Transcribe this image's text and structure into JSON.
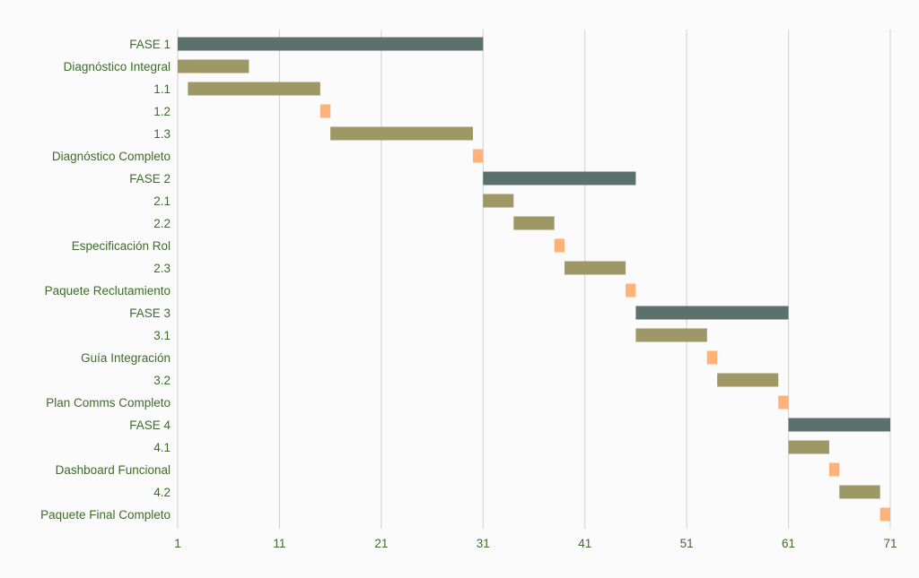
{
  "chart_data": {
    "type": "gantt",
    "title": "",
    "xlabel": "",
    "ylabel": "",
    "xlim": [
      1,
      71
    ],
    "x_ticks": [
      1,
      11,
      21,
      31,
      41,
      51,
      61,
      71
    ],
    "grid": "vertical",
    "legend": "none",
    "colors": {
      "phase": "#5c716b",
      "task": "#9e9766",
      "milestone": "#fdb27a",
      "label": "#3d6b2a"
    },
    "tasks": [
      {
        "label": "FASE 1",
        "start": 1,
        "end": 31,
        "kind": "phase"
      },
      {
        "label": "Diagnóstico Integral",
        "start": 1,
        "end": 8,
        "kind": "task"
      },
      {
        "label": "1.1",
        "start": 2,
        "end": 15,
        "kind": "task"
      },
      {
        "label": "1.2",
        "start": 15,
        "end": 16,
        "kind": "milestone"
      },
      {
        "label": "1.3",
        "start": 16,
        "end": 30,
        "kind": "task"
      },
      {
        "label": "Diagnóstico Completo",
        "start": 30,
        "end": 31,
        "kind": "milestone"
      },
      {
        "label": "FASE 2",
        "start": 31,
        "end": 46,
        "kind": "phase"
      },
      {
        "label": "2.1",
        "start": 31,
        "end": 34,
        "kind": "task"
      },
      {
        "label": "2.2",
        "start": 34,
        "end": 38,
        "kind": "task"
      },
      {
        "label": "Especificación Rol",
        "start": 38,
        "end": 39,
        "kind": "milestone"
      },
      {
        "label": "2.3",
        "start": 39,
        "end": 45,
        "kind": "task"
      },
      {
        "label": "Paquete Reclutamiento",
        "start": 45,
        "end": 46,
        "kind": "milestone"
      },
      {
        "label": "FASE 3",
        "start": 46,
        "end": 61,
        "kind": "phase"
      },
      {
        "label": "3.1",
        "start": 46,
        "end": 53,
        "kind": "task"
      },
      {
        "label": "Guía Integración",
        "start": 53,
        "end": 54,
        "kind": "milestone"
      },
      {
        "label": "3.2",
        "start": 54,
        "end": 60,
        "kind": "task"
      },
      {
        "label": "Plan Comms Completo",
        "start": 60,
        "end": 61,
        "kind": "milestone"
      },
      {
        "label": "FASE 4",
        "start": 61,
        "end": 71,
        "kind": "phase"
      },
      {
        "label": "4.1",
        "start": 61,
        "end": 65,
        "kind": "task"
      },
      {
        "label": "Dashboard Funcional",
        "start": 65,
        "end": 66,
        "kind": "milestone"
      },
      {
        "label": "4.2",
        "start": 66,
        "end": 70,
        "kind": "task"
      },
      {
        "label": "Paquete Final Completo",
        "start": 70,
        "end": 71,
        "kind": "milestone"
      }
    ]
  }
}
